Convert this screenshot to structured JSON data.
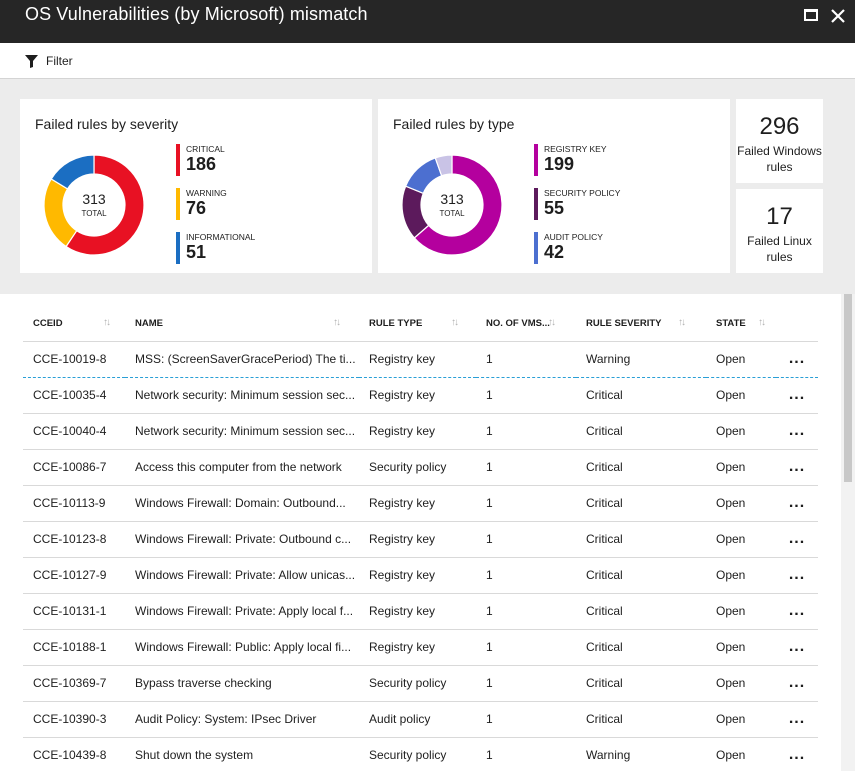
{
  "window": {
    "title": "OS Vulnerabilities (by Microsoft) mismatch"
  },
  "toolbar": {
    "filter_label": "Filter"
  },
  "severity_tile": {
    "title": "Failed rules by severity",
    "total": "313",
    "total_label": "TOTAL",
    "items": [
      {
        "label": "CRITICAL",
        "value": "186",
        "color": "#e81123"
      },
      {
        "label": "WARNING",
        "value": "76",
        "color": "#ffb900"
      },
      {
        "label": "INFORMATIONAL",
        "value": "51",
        "color": "#1b6ec2"
      }
    ]
  },
  "type_tile": {
    "title": "Failed rules by type",
    "total": "313",
    "total_label": "TOTAL",
    "items": [
      {
        "label": "REGISTRY KEY",
        "value": "199",
        "color": "#b4009e"
      },
      {
        "label": "SECURITY POLICY",
        "value": "55",
        "color": "#5c1a5c"
      },
      {
        "label": "AUDIT POLICY",
        "value": "42",
        "color": "#4c6fd0"
      }
    ],
    "remainder_color": "#c9c3e6"
  },
  "windows_tile": {
    "value": "296",
    "label": "Failed Windows rules"
  },
  "linux_tile": {
    "value": "17",
    "label": "Failed Linux rules"
  },
  "table": {
    "headers": [
      "CCEID",
      "NAME",
      "RULE TYPE",
      "NO. OF VMS...",
      "RULE SEVERITY",
      "STATE"
    ],
    "more_label": "...",
    "rows": [
      {
        "cceid": "CCE-10019-8",
        "name": "MSS: (ScreenSaverGracePeriod) The ti...",
        "type": "Registry key",
        "vms": "1",
        "severity": "Warning",
        "state": "Open"
      },
      {
        "cceid": "CCE-10035-4",
        "name": "Network security: Minimum session sec...",
        "type": "Registry key",
        "vms": "1",
        "severity": "Critical",
        "state": "Open"
      },
      {
        "cceid": "CCE-10040-4",
        "name": "Network security: Minimum session sec...",
        "type": "Registry key",
        "vms": "1",
        "severity": "Critical",
        "state": "Open"
      },
      {
        "cceid": "CCE-10086-7",
        "name": "Access this computer from the network",
        "type": "Security policy",
        "vms": "1",
        "severity": "Critical",
        "state": "Open"
      },
      {
        "cceid": "CCE-10113-9",
        "name": "Windows Firewall: Domain: Outbound...",
        "type": "Registry key",
        "vms": "1",
        "severity": "Critical",
        "state": "Open"
      },
      {
        "cceid": "CCE-10123-8",
        "name": "Windows Firewall: Private: Outbound c...",
        "type": "Registry key",
        "vms": "1",
        "severity": "Critical",
        "state": "Open"
      },
      {
        "cceid": "CCE-10127-9",
        "name": "Windows Firewall: Private: Allow unicas...",
        "type": "Registry key",
        "vms": "1",
        "severity": "Critical",
        "state": "Open"
      },
      {
        "cceid": "CCE-10131-1",
        "name": "Windows Firewall: Private: Apply local f...",
        "type": "Registry key",
        "vms": "1",
        "severity": "Critical",
        "state": "Open"
      },
      {
        "cceid": "CCE-10188-1",
        "name": "Windows Firewall: Public: Apply local fi...",
        "type": "Registry key",
        "vms": "1",
        "severity": "Critical",
        "state": "Open"
      },
      {
        "cceid": "CCE-10369-7",
        "name": "Bypass traverse checking",
        "type": "Security policy",
        "vms": "1",
        "severity": "Critical",
        "state": "Open"
      },
      {
        "cceid": "CCE-10390-3",
        "name": "Audit Policy: System: IPsec Driver",
        "type": "Audit policy",
        "vms": "1",
        "severity": "Critical",
        "state": "Open"
      },
      {
        "cceid": "CCE-10439-8",
        "name": "Shut down the system",
        "type": "Security policy",
        "vms": "1",
        "severity": "Warning",
        "state": "Open"
      }
    ]
  }
}
